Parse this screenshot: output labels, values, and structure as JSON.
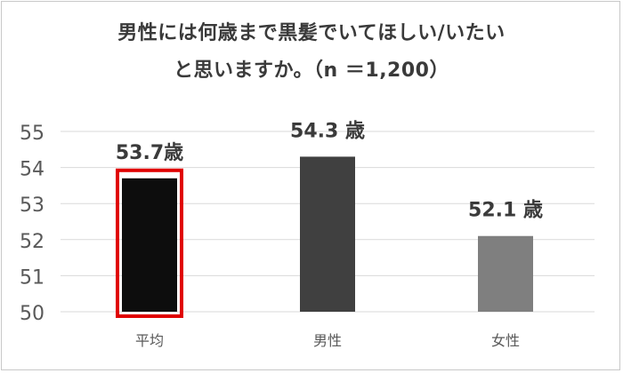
{
  "chart_data": {
    "type": "bar",
    "title_lines": [
      "男性には何歳まで黒髪でいてほしい/いたい",
      "と思いますか。（n ＝1,200）"
    ],
    "categories": [
      "平均",
      "男性",
      "女性"
    ],
    "values": [
      53.7,
      54.3,
      52.1
    ],
    "value_labels": [
      "53.7歳",
      "54.3 歳",
      "52.1 歳"
    ],
    "ylim": [
      50,
      55
    ],
    "yticks": [
      "50",
      "51",
      "52",
      "53",
      "54",
      "55"
    ],
    "grid": true,
    "legend": "none",
    "highlighted_category": "平均"
  },
  "colors": {
    "bars": [
      "#0d0d0d",
      "#404040",
      "#7f7f7f"
    ],
    "highlight_border": "#e00000",
    "grid": "#d9d9d9",
    "axis_text": "#595959",
    "title_text": "#3a3a3a",
    "value_label_text": "#3a3a3a"
  }
}
